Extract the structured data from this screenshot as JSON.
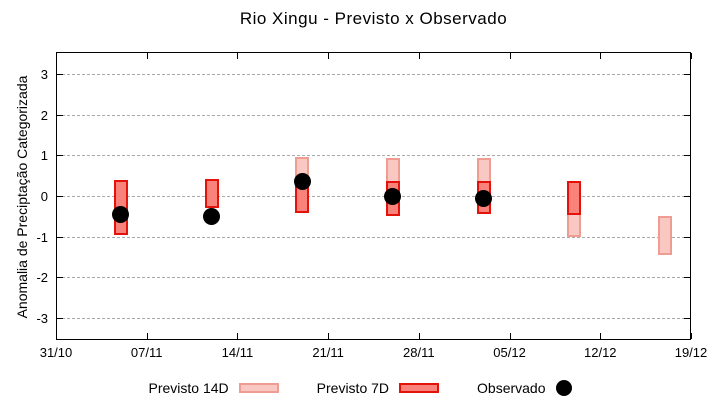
{
  "title": "Rio Xingu - Previsto x Observado",
  "chart_data": {
    "type": "bar",
    "subtype": "range-bars-with-observed-points",
    "title": "Rio Xingu - Previsto x Observado",
    "xlabel": "",
    "ylabel": "Anomalia de Preciptação Categorizada",
    "ylim": [
      -3.55,
      3.55
    ],
    "y_ticks": [
      3,
      2,
      1,
      0,
      -1,
      -2,
      -3
    ],
    "x_range_days": [
      0,
      49
    ],
    "x_ticks": [
      {
        "day": 0,
        "label": "31/10"
      },
      {
        "day": 7,
        "label": "07/11"
      },
      {
        "day": 14,
        "label": "14/11"
      },
      {
        "day": 21,
        "label": "21/11"
      },
      {
        "day": 28,
        "label": "28/11"
      },
      {
        "day": 35,
        "label": "05/12"
      },
      {
        "day": 42,
        "label": "12/12"
      },
      {
        "day": 49,
        "label": "19/12"
      }
    ],
    "grid": "horizontal dashed",
    "legend_position": "bottom center",
    "colors": {
      "previsto_14d_fill": "#f9c8c2",
      "previsto_14d_border": "#ef9d93",
      "previsto_7d_fill": "#f9827a",
      "previsto_7d_border": "#e3120b",
      "observado": "#000000",
      "grid": "#a9a9a9"
    },
    "series": [
      {
        "name": "Previsto 14D",
        "type": "range-bar",
        "ranges": [
          {
            "day": 19,
            "date": "19/11",
            "lo": -0.43,
            "hi": 0.95
          },
          {
            "day": 26,
            "date": "26/11",
            "lo": -0.49,
            "hi": 0.93
          },
          {
            "day": 33,
            "date": "03/12",
            "lo": -0.45,
            "hi": 0.93
          },
          {
            "day": 40,
            "date": "10/12",
            "lo": -1.0,
            "hi": 0.38
          },
          {
            "day": 47,
            "date": "17/12",
            "lo": -1.45,
            "hi": -0.5
          }
        ]
      },
      {
        "name": "Previsto 7D",
        "type": "range-bar",
        "ranges": [
          {
            "day": 5,
            "date": "05/11",
            "lo": -0.95,
            "hi": 0.4
          },
          {
            "day": 12,
            "date": "12/11",
            "lo": -0.3,
            "hi": 0.42
          },
          {
            "day": 19,
            "date": "19/11",
            "lo": -0.43,
            "hi": 0.43
          },
          {
            "day": 26,
            "date": "26/11",
            "lo": -0.49,
            "hi": 0.37
          },
          {
            "day": 33,
            "date": "03/12",
            "lo": -0.45,
            "hi": 0.38
          },
          {
            "day": 40,
            "date": "10/12",
            "lo": -0.47,
            "hi": 0.38
          }
        ]
      },
      {
        "name": "Observado",
        "type": "scatter",
        "points": [
          {
            "day": 5,
            "date": "05/11",
            "value": -0.45
          },
          {
            "day": 12,
            "date": "12/11",
            "value": -0.5
          },
          {
            "day": 19,
            "date": "19/11",
            "value": 0.35
          },
          {
            "day": 26,
            "date": "26/11",
            "value": 0.0
          },
          {
            "day": 33,
            "date": "03/12",
            "value": -0.05
          }
        ]
      }
    ],
    "legend": [
      {
        "label": "Previsto 14D",
        "swatch": "box",
        "fill": "#f9c8c2",
        "border": "#ef9d93"
      },
      {
        "label": "Previsto 7D",
        "swatch": "box",
        "fill": "#f9827a",
        "border": "#e3120b"
      },
      {
        "label": "Observado",
        "swatch": "dot",
        "fill": "#000000"
      }
    ]
  }
}
